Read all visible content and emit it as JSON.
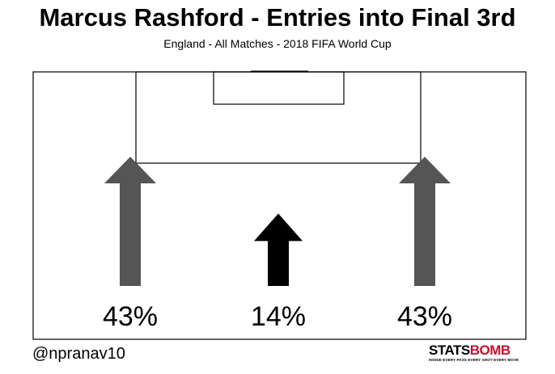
{
  "title": "Marcus Rashford - Entries into Final 3rd",
  "subtitle": "England - All Matches - 2018 FIFA World Cup",
  "credit": "@npranav10",
  "logo": {
    "word_part1": "STATS",
    "word_part2": "BOMB",
    "tagline": "INSIDE EVERY PASS EVERY SHOT EVERY MOVE"
  },
  "colors": {
    "side_arrow": "#555555",
    "center_arrow": "#000000",
    "logo_accent": "#c8102e"
  },
  "chart_data": {
    "type": "bar",
    "categories": [
      "Left",
      "Centre",
      "Right"
    ],
    "values": [
      43,
      14,
      43
    ],
    "labels": [
      "43%",
      "14%",
      "43%"
    ],
    "unit": "%"
  }
}
